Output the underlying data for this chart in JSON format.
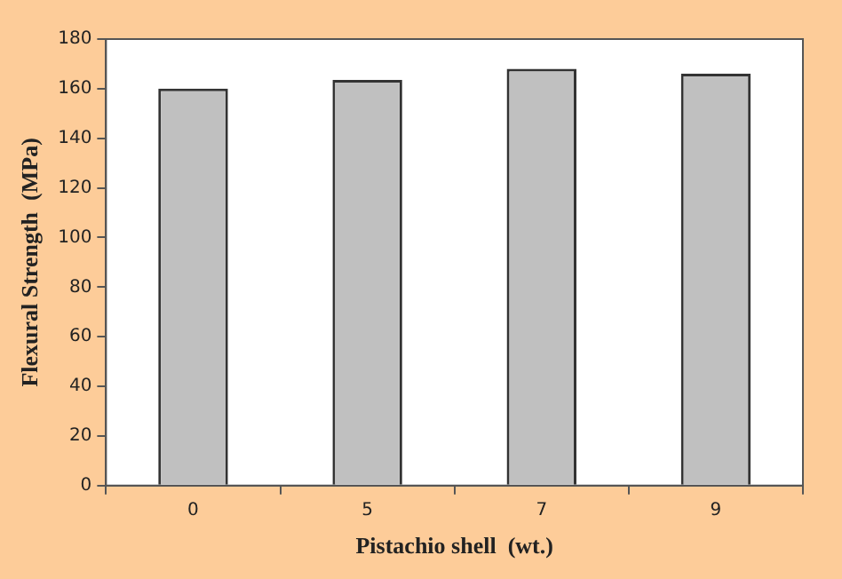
{
  "chart_data": {
    "type": "bar",
    "xlabel": "Pistachio shell  (wt.)",
    "ylabel": "Flexural Strength  (MPa)",
    "categories": [
      "0",
      "5",
      "7",
      "9"
    ],
    "values": [
      160,
      163.5,
      168,
      166
    ],
    "color": "#c0c0c0",
    "ylim": [
      0,
      180
    ],
    "yticks": [
      0,
      20,
      40,
      60,
      80,
      100,
      120,
      140,
      160,
      180
    ],
    "grid": false,
    "legend": false
  }
}
